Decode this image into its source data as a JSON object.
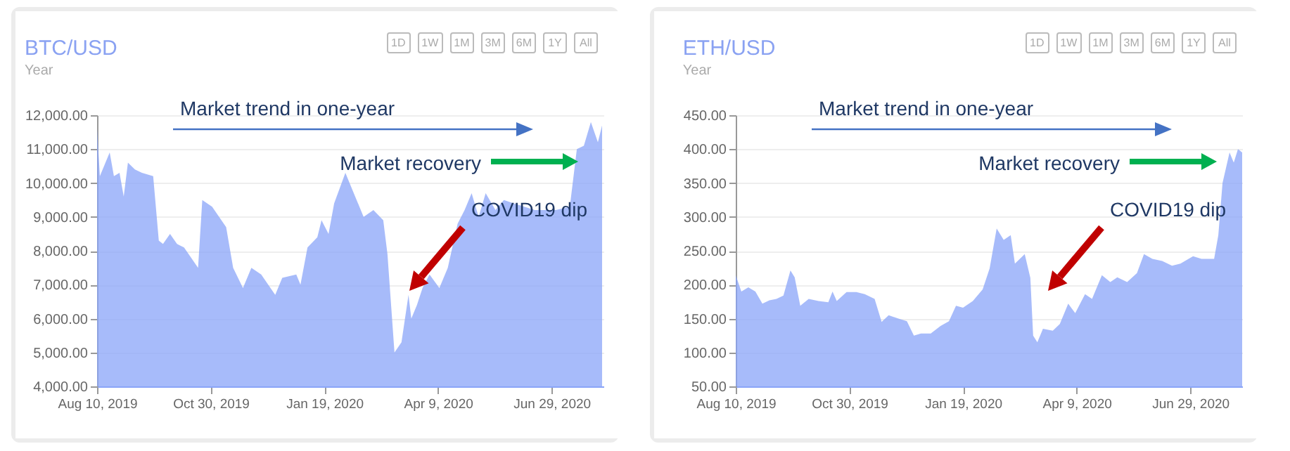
{
  "chart_data": [
    {
      "type": "area",
      "title": "BTC/USD",
      "subtitle": "Year",
      "color": "#8aa4f8",
      "x": [
        "2019-08-10",
        "2019-08-12",
        "2019-08-19",
        "2019-08-22",
        "2019-08-26",
        "2019-08-29",
        "2019-09-01",
        "2019-09-06",
        "2019-09-11",
        "2019-09-19",
        "2019-09-23",
        "2019-09-26",
        "2019-10-01",
        "2019-10-06",
        "2019-10-11",
        "2019-10-21",
        "2019-10-24",
        "2019-10-31",
        "2019-11-10",
        "2019-11-15",
        "2019-11-22",
        "2019-11-28",
        "2019-12-05",
        "2019-12-15",
        "2019-12-20",
        "2019-12-30",
        "2020-01-02",
        "2020-01-07",
        "2020-01-14",
        "2020-01-17",
        "2020-01-22",
        "2020-01-26",
        "2020-02-03",
        "2020-02-08",
        "2020-02-16",
        "2020-02-23",
        "2020-03-01",
        "2020-03-04",
        "2020-03-09",
        "2020-03-14",
        "2020-03-19",
        "2020-03-21",
        "2020-03-25",
        "2020-03-29",
        "2020-04-03",
        "2020-04-10",
        "2020-04-16",
        "2020-04-23",
        "2020-04-28",
        "2020-05-03",
        "2020-05-08",
        "2020-05-13",
        "2020-05-20",
        "2020-05-26",
        "2020-06-02",
        "2020-06-17",
        "2020-07-02",
        "2020-07-12",
        "2020-07-17",
        "2020-07-22",
        "2020-07-27",
        "2020-08-01",
        "2020-08-04"
      ],
      "values": [
        11600,
        10200,
        10900,
        10200,
        10300,
        9600,
        10600,
        10400,
        10300,
        10200,
        8300,
        8200,
        8500,
        8200,
        8100,
        7500,
        9500,
        9300,
        8700,
        7500,
        6900,
        7500,
        7300,
        6700,
        7200,
        7300,
        7000,
        8100,
        8400,
        8900,
        8500,
        9400,
        10300,
        9800,
        9000,
        9200,
        8900,
        7900,
        5000,
        5300,
        6700,
        6000,
        6400,
        6900,
        7300,
        6900,
        7500,
        8800,
        9200,
        9700,
        9000,
        9700,
        9200,
        9500,
        9400,
        9200,
        9200,
        9300,
        11000,
        11100,
        11800,
        11200,
        11700
      ],
      "xlim": [
        "2019-08-10",
        "2020-08-05"
      ],
      "xticks": [
        {
          "value": "2019-08-10",
          "label": "Aug 10, 2019"
        },
        {
          "value": "2019-10-30",
          "label": "Oct 30, 2019"
        },
        {
          "value": "2020-01-19",
          "label": "Jan 19, 2020"
        },
        {
          "value": "2020-04-09",
          "label": "Apr 9, 2020"
        },
        {
          "value": "2020-06-29",
          "label": "Jun 29, 2020"
        }
      ],
      "ylim": [
        4000,
        12000
      ],
      "yticks": [
        {
          "value": 4000,
          "label": "4,000.00"
        },
        {
          "value": 5000,
          "label": "5,000.00"
        },
        {
          "value": 6000,
          "label": "6,000.00"
        },
        {
          "value": 7000,
          "label": "7,000.00"
        },
        {
          "value": 8000,
          "label": "8,000.00"
        },
        {
          "value": 9000,
          "label": "9,000.00"
        },
        {
          "value": 10000,
          "label": "10,000.00"
        },
        {
          "value": 11000,
          "label": "11,000.00"
        },
        {
          "value": 12000,
          "label": "12,000.00"
        }
      ],
      "grid": "y",
      "annotations": [
        "Market trend in one-year",
        "Market recovery",
        "COVID19 dip",
        "1D",
        "1W",
        "1M",
        "3M",
        "6M",
        "1Y",
        "All"
      ]
    },
    {
      "type": "area",
      "title": "ETH/USD",
      "subtitle": "Year",
      "color": "#8aa4f8",
      "x": [
        "2019-08-10",
        "2019-08-14",
        "2019-08-19",
        "2019-08-24",
        "2019-08-29",
        "2019-09-03",
        "2019-09-08",
        "2019-09-13",
        "2019-09-18",
        "2019-09-21",
        "2019-09-25",
        "2019-10-01",
        "2019-10-08",
        "2019-10-15",
        "2019-10-18",
        "2019-10-21",
        "2019-10-28",
        "2019-11-04",
        "2019-11-10",
        "2019-11-17",
        "2019-11-22",
        "2019-11-27",
        "2019-12-04",
        "2019-12-10",
        "2019-12-15",
        "2019-12-20",
        "2019-12-27",
        "2020-01-03",
        "2020-01-09",
        "2020-01-14",
        "2020-01-19",
        "2020-01-26",
        "2020-02-02",
        "2020-02-07",
        "2020-02-12",
        "2020-02-17",
        "2020-02-22",
        "2020-02-25",
        "2020-03-03",
        "2020-03-07",
        "2020-03-09",
        "2020-03-12",
        "2020-03-16",
        "2020-03-23",
        "2020-03-28",
        "2020-04-03",
        "2020-04-08",
        "2020-04-15",
        "2020-04-20",
        "2020-04-27",
        "2020-05-03",
        "2020-05-08",
        "2020-05-15",
        "2020-05-22",
        "2020-05-27",
        "2020-06-02",
        "2020-06-09",
        "2020-06-16",
        "2020-06-22",
        "2020-07-01",
        "2020-07-07",
        "2020-07-16",
        "2020-07-19",
        "2020-07-22",
        "2020-07-27",
        "2020-07-30",
        "2020-08-02",
        "2020-08-05"
      ],
      "values": [
        214,
        190,
        196,
        190,
        172,
        177,
        179,
        184,
        221,
        211,
        169,
        179,
        176,
        174,
        190,
        176,
        189,
        189,
        186,
        179,
        145,
        155,
        150,
        146,
        125,
        128,
        128,
        139,
        146,
        169,
        166,
        176,
        193,
        224,
        283,
        266,
        273,
        231,
        245,
        210,
        125,
        115,
        135,
        132,
        142,
        172,
        158,
        186,
        179,
        214,
        204,
        211,
        204,
        217,
        245,
        238,
        235,
        228,
        231,
        242,
        238,
        238,
        273,
        350,
        395,
        380,
        400,
        395
      ],
      "xlim": [
        "2019-08-10",
        "2020-08-05"
      ],
      "xticks": [
        {
          "value": "2019-08-10",
          "label": "Aug 10, 2019"
        },
        {
          "value": "2019-10-30",
          "label": "Oct 30, 2019"
        },
        {
          "value": "2020-01-19",
          "label": "Jan 19, 2020"
        },
        {
          "value": "2020-04-09",
          "label": "Apr 9, 2020"
        },
        {
          "value": "2020-06-29",
          "label": "Jun 29, 2020"
        }
      ],
      "ylim": [
        50,
        450
      ],
      "yticks": [
        {
          "value": 50,
          "label": "50.00"
        },
        {
          "value": 100,
          "label": "100.00"
        },
        {
          "value": 150,
          "label": "150.00"
        },
        {
          "value": 200,
          "label": "200.00"
        },
        {
          "value": 250,
          "label": "250.00"
        },
        {
          "value": 300,
          "label": "300.00"
        },
        {
          "value": 350,
          "label": "350.00"
        },
        {
          "value": 400,
          "label": "400.00"
        },
        {
          "value": 450,
          "label": "450.00"
        }
      ],
      "grid": "y",
      "annotations": [
        "Market trend in one-year",
        "Market recovery",
        "COVID19 dip",
        "1D",
        "1W",
        "1M",
        "3M",
        "6M",
        "1Y",
        "All"
      ]
    }
  ]
}
